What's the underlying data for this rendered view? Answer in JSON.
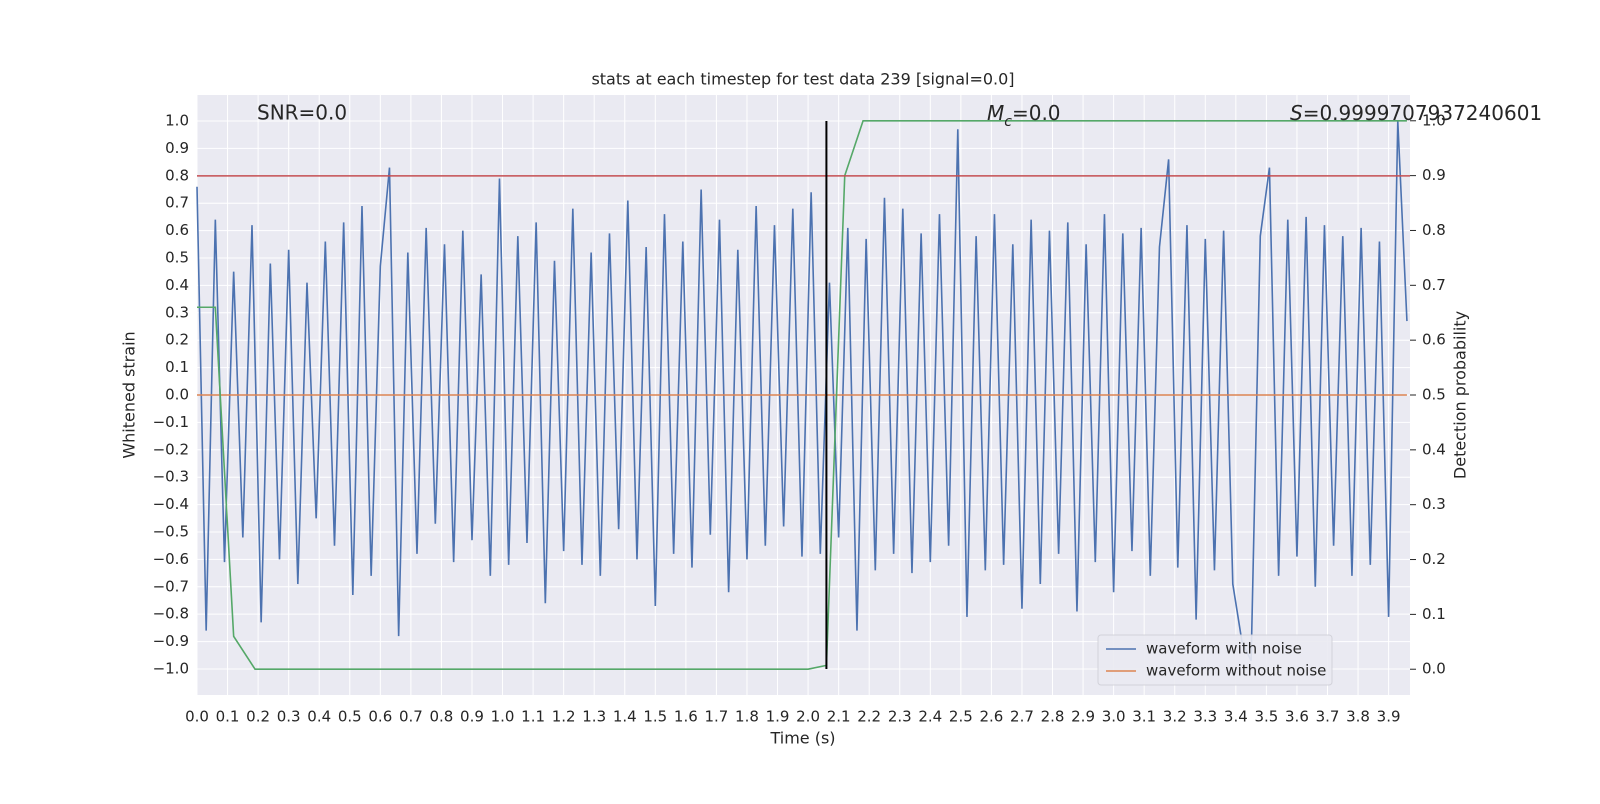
{
  "chart_data": {
    "type": "line",
    "title": "stats at each timestep for test data 239 [signal=0.0]",
    "xlabel": "Time (s)",
    "ylabel": "Whitened strain",
    "y2label": "Detection probability",
    "annotations": {
      "snr": "SNR=0.0",
      "mc": {
        "symbol": "M",
        "subscript": "c",
        "text": "=0.0"
      },
      "s": {
        "symbol": "S",
        "text": "=0.9999707937240601"
      }
    },
    "xlim": [
      0,
      3.97
    ],
    "ylim": [
      -1.095,
      1.095
    ],
    "y2lim": [
      -0.047,
      1.047
    ],
    "xticks": [
      {
        "value": 0,
        "label": "0.0"
      },
      0.1,
      0.2,
      0.3,
      0.4,
      0.5,
      0.6,
      0.7,
      0.8,
      0.9,
      {
        "value": 1,
        "label": "1.0"
      },
      1.1,
      1.2,
      1.3,
      1.4,
      1.5,
      1.6,
      1.7,
      1.8,
      1.9,
      {
        "value": 2,
        "label": "2.0"
      },
      2.1,
      2.2,
      2.3,
      2.4,
      2.5,
      2.6,
      2.7,
      2.8,
      2.9,
      {
        "value": 3,
        "label": "3.0"
      },
      3.1,
      3.2,
      3.3,
      3.4,
      3.5,
      3.6,
      3.7,
      3.8,
      3.9
    ],
    "yticks": [
      {
        "value": -1,
        "label": "−1.0"
      },
      {
        "value": -0.9,
        "label": "−0.9"
      },
      {
        "value": -0.8,
        "label": "−0.8"
      },
      {
        "value": -0.7,
        "label": "−0.7"
      },
      {
        "value": -0.6,
        "label": "−0.6"
      },
      {
        "value": -0.5,
        "label": "−0.5"
      },
      {
        "value": -0.4,
        "label": "−0.4"
      },
      {
        "value": -0.3,
        "label": "−0.3"
      },
      {
        "value": -0.2,
        "label": "−0.2"
      },
      {
        "value": -0.1,
        "label": "−0.1"
      },
      {
        "value": 0,
        "label": "0.0"
      },
      0.1,
      0.2,
      0.3,
      0.4,
      0.5,
      0.6,
      0.7,
      0.8,
      0.9,
      {
        "value": 1,
        "label": "1.0"
      }
    ],
    "y2ticks": [
      {
        "value": 0,
        "label": "0.0"
      },
      0.1,
      0.2,
      0.3,
      0.4,
      0.5,
      0.6,
      0.7,
      0.8,
      0.9,
      {
        "value": 1,
        "label": "1.0"
      }
    ],
    "grid": true,
    "legend": "lower right",
    "series": [
      {
        "name": "waveform with noise",
        "color": "#4c72b0",
        "x": [
          0,
          0.03,
          0.06,
          0.09,
          0.12,
          0.15,
          0.18,
          0.21,
          0.24,
          0.27,
          0.3,
          0.33,
          0.36,
          0.39,
          0.42,
          0.45,
          0.48,
          0.51,
          0.54,
          0.57,
          0.6,
          0.63,
          0.66,
          0.69,
          0.72,
          0.75,
          0.78,
          0.81,
          0.84,
          0.87,
          0.9,
          0.93,
          0.96,
          0.99,
          1.02,
          1.05,
          1.08,
          1.11,
          1.14,
          1.17,
          1.2,
          1.23,
          1.26,
          1.29,
          1.32,
          1.35,
          1.38,
          1.41,
          1.44,
          1.47,
          1.5,
          1.53,
          1.56,
          1.59,
          1.62,
          1.65,
          1.68,
          1.71,
          1.74,
          1.77,
          1.8,
          1.83,
          1.86,
          1.89,
          1.92,
          1.95,
          1.98,
          2.01,
          2.04,
          2.07,
          2.1,
          2.13,
          2.16,
          2.19,
          2.22,
          2.25,
          2.28,
          2.31,
          2.34,
          2.37,
          2.4,
          2.43,
          2.46,
          2.49,
          2.52,
          2.55,
          2.58,
          2.61,
          2.64,
          2.67,
          2.7,
          2.73,
          2.76,
          2.79,
          2.82,
          2.85,
          2.88,
          2.91,
          2.94,
          2.97,
          3,
          3.03,
          3.06,
          3.09,
          3.12,
          3.15,
          3.18,
          3.21,
          3.24,
          3.27,
          3.3,
          3.33,
          3.36,
          3.39,
          3.42,
          3.45,
          3.48,
          3.51,
          3.54,
          3.57,
          3.6,
          3.63,
          3.66,
          3.69,
          3.72,
          3.75,
          3.78,
          3.81,
          3.84,
          3.87,
          3.9,
          3.93,
          3.96
        ],
        "values": [
          0.76,
          -0.86,
          0.64,
          -0.61,
          0.45,
          -0.52,
          0.62,
          -0.83,
          0.48,
          -0.6,
          0.53,
          -0.69,
          0.41,
          -0.45,
          0.56,
          -0.55,
          0.63,
          -0.73,
          0.69,
          -0.66,
          0.47,
          0.83,
          -0.88,
          0.52,
          -0.58,
          0.61,
          -0.47,
          0.55,
          -0.61,
          0.6,
          -0.53,
          0.44,
          -0.66,
          0.79,
          -0.62,
          0.58,
          -0.54,
          0.63,
          -0.76,
          0.49,
          -0.57,
          0.68,
          -0.62,
          0.52,
          -0.66,
          0.59,
          -0.49,
          0.71,
          -0.6,
          0.54,
          -0.77,
          0.66,
          -0.58,
          0.56,
          -0.63,
          0.75,
          -0.51,
          0.64,
          -0.72,
          0.53,
          -0.6,
          0.69,
          -0.55,
          0.62,
          -0.48,
          0.68,
          -0.59,
          0.74,
          -0.58,
          0.41,
          -0.52,
          0.61,
          -0.86,
          0.57,
          -0.64,
          0.72,
          -0.58,
          0.68,
          -0.65,
          0.59,
          -0.61,
          0.66,
          -0.55,
          0.97,
          -0.81,
          0.58,
          -0.64,
          0.66,
          -0.62,
          0.55,
          -0.78,
          0.64,
          -0.69,
          0.6,
          -0.58,
          0.63,
          -0.79,
          0.55,
          -0.61,
          0.66,
          -0.72,
          0.59,
          -0.57,
          0.61,
          -0.66,
          0.54,
          0.86,
          -0.63,
          0.62,
          -0.82,
          0.57,
          -0.64,
          0.6,
          -0.69,
          -0.9,
          -0.97,
          0.58,
          0.83,
          -0.66,
          0.64,
          -0.59,
          0.65,
          -0.7,
          0.62,
          -0.55,
          0.58,
          -0.66,
          0.61,
          -0.62,
          0.56,
          -0.81,
          1.0,
          0.27
        ]
      },
      {
        "name": "waveform without noise",
        "color": "#dd8452",
        "x": [
          0,
          3.96
        ],
        "values": [
          0,
          0
        ]
      },
      {
        "color": "#55a868",
        "axis": "y2",
        "x": [
          0,
          0.06,
          0.12,
          0.19,
          2.0,
          2.06,
          2.12,
          2.18,
          3.96
        ],
        "values": [
          0.66,
          0.66,
          0.06,
          0,
          0,
          0.007,
          0.9,
          1.0,
          1.0
        ]
      }
    ],
    "hlines": [
      {
        "y": 0.8,
        "color": "#c44e52"
      }
    ],
    "vlines": [
      {
        "x": 2.06,
        "ymin": -1,
        "ymax": 1,
        "color": "#000000"
      }
    ]
  }
}
